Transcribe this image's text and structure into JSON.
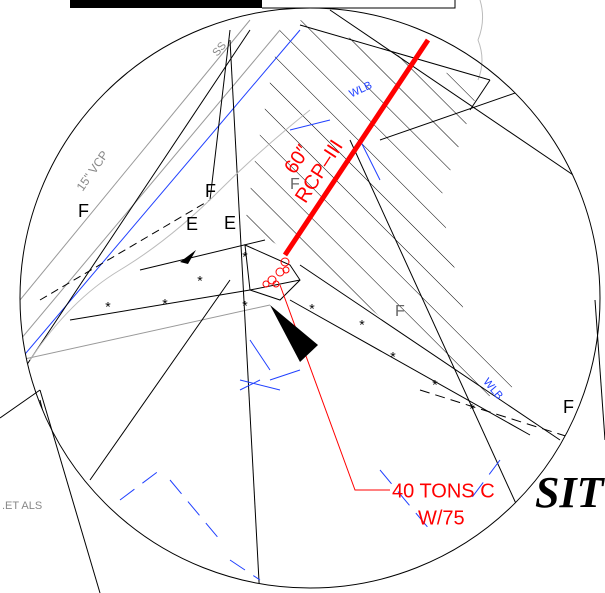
{
  "pipe": {
    "size": "60″",
    "type": "RCP–III"
  },
  "callout": {
    "line1": "40 TONS C",
    "line2": "W/75"
  },
  "title_fragment": "SIT",
  "annotations": [
    "F",
    "F",
    "F",
    "F",
    "F",
    "E",
    "E",
    "WLB",
    "WLB",
    "SS",
    "15\" VCP",
    ".ET ALS"
  ]
}
